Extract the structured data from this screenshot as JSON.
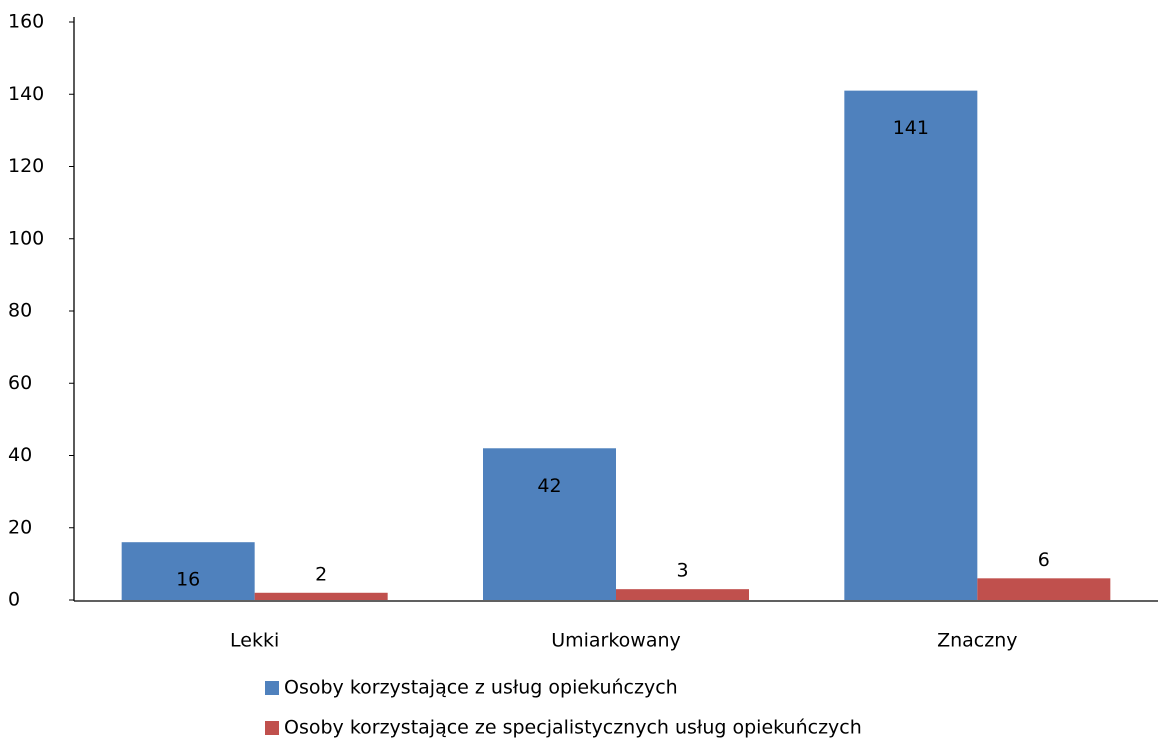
{
  "chart_data": {
    "type": "bar",
    "categories": [
      "Lekki",
      "Umiarkowany",
      "Znaczny"
    ],
    "series": [
      {
        "name": "Osoby korzystające z usług opiekuńczych",
        "color": "#4f81bd",
        "values": [
          16,
          42,
          141
        ]
      },
      {
        "name": "Osoby korzystające ze specjalistycznych usług opiekuńczych",
        "color": "#c0504d",
        "values": [
          2,
          3,
          6
        ]
      }
    ],
    "ylim": [
      0,
      160
    ],
    "yticks": [
      0,
      20,
      40,
      60,
      80,
      100,
      120,
      140,
      160
    ],
    "grid": false,
    "legend": "bottom"
  }
}
